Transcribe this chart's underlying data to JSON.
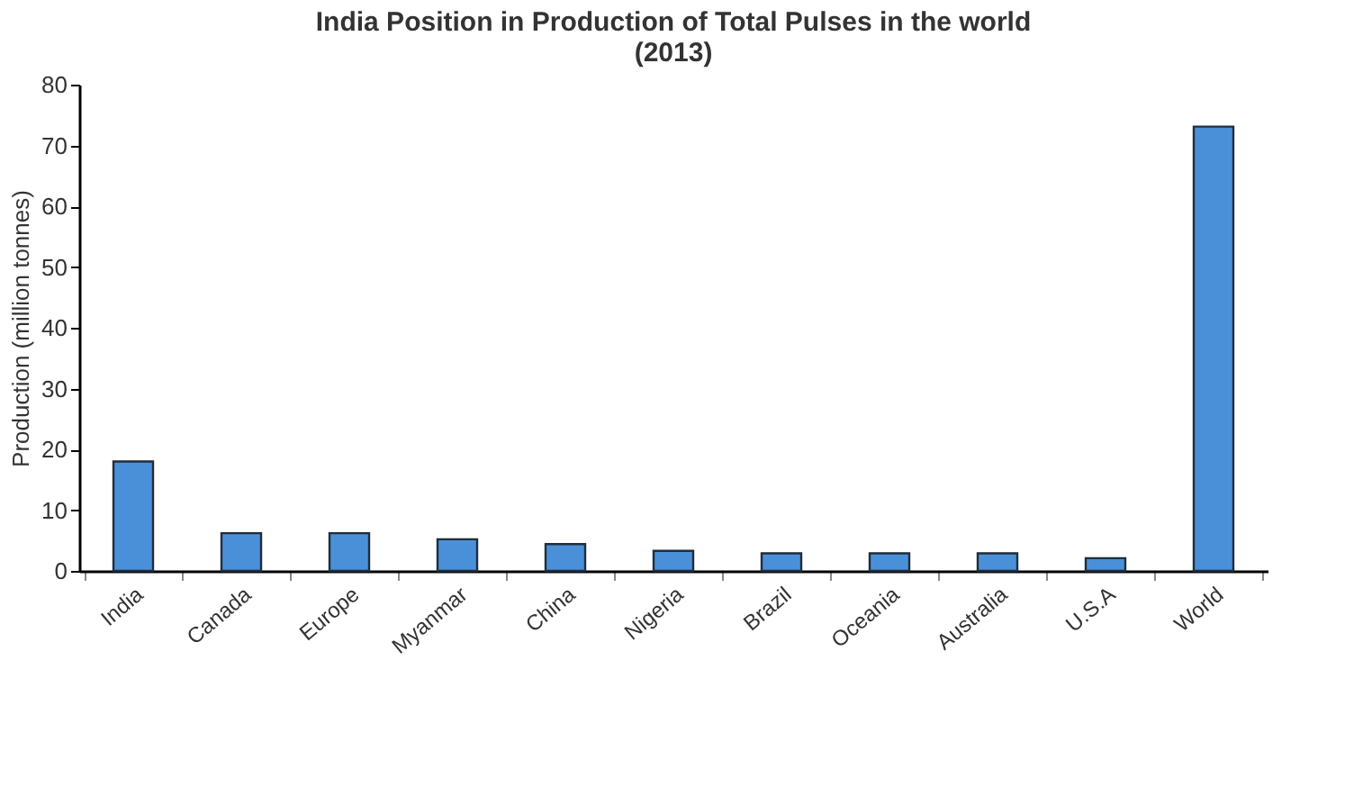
{
  "chart_data": {
    "type": "bar",
    "title": [
      "India Position in Production of Total Pulses in the world",
      "(2013)"
    ],
    "ylabel": "Production (million tonnes)",
    "categories": [
      "India",
      "Canada",
      "Europe",
      "Myanmar",
      "China",
      "Nigeria",
      "Brazil",
      "Oceania",
      "Australia",
      "U.S.A",
      "World"
    ],
    "values": [
      18.0,
      6.2,
      6.2,
      5.2,
      4.4,
      3.3,
      2.9,
      2.9,
      2.9,
      2.1,
      73.1
    ],
    "color": "#4a90d9",
    "ylim": [
      0,
      80
    ],
    "yticks": [
      0,
      10,
      20,
      30,
      40,
      50,
      60,
      70,
      80
    ],
    "grid": false
  }
}
